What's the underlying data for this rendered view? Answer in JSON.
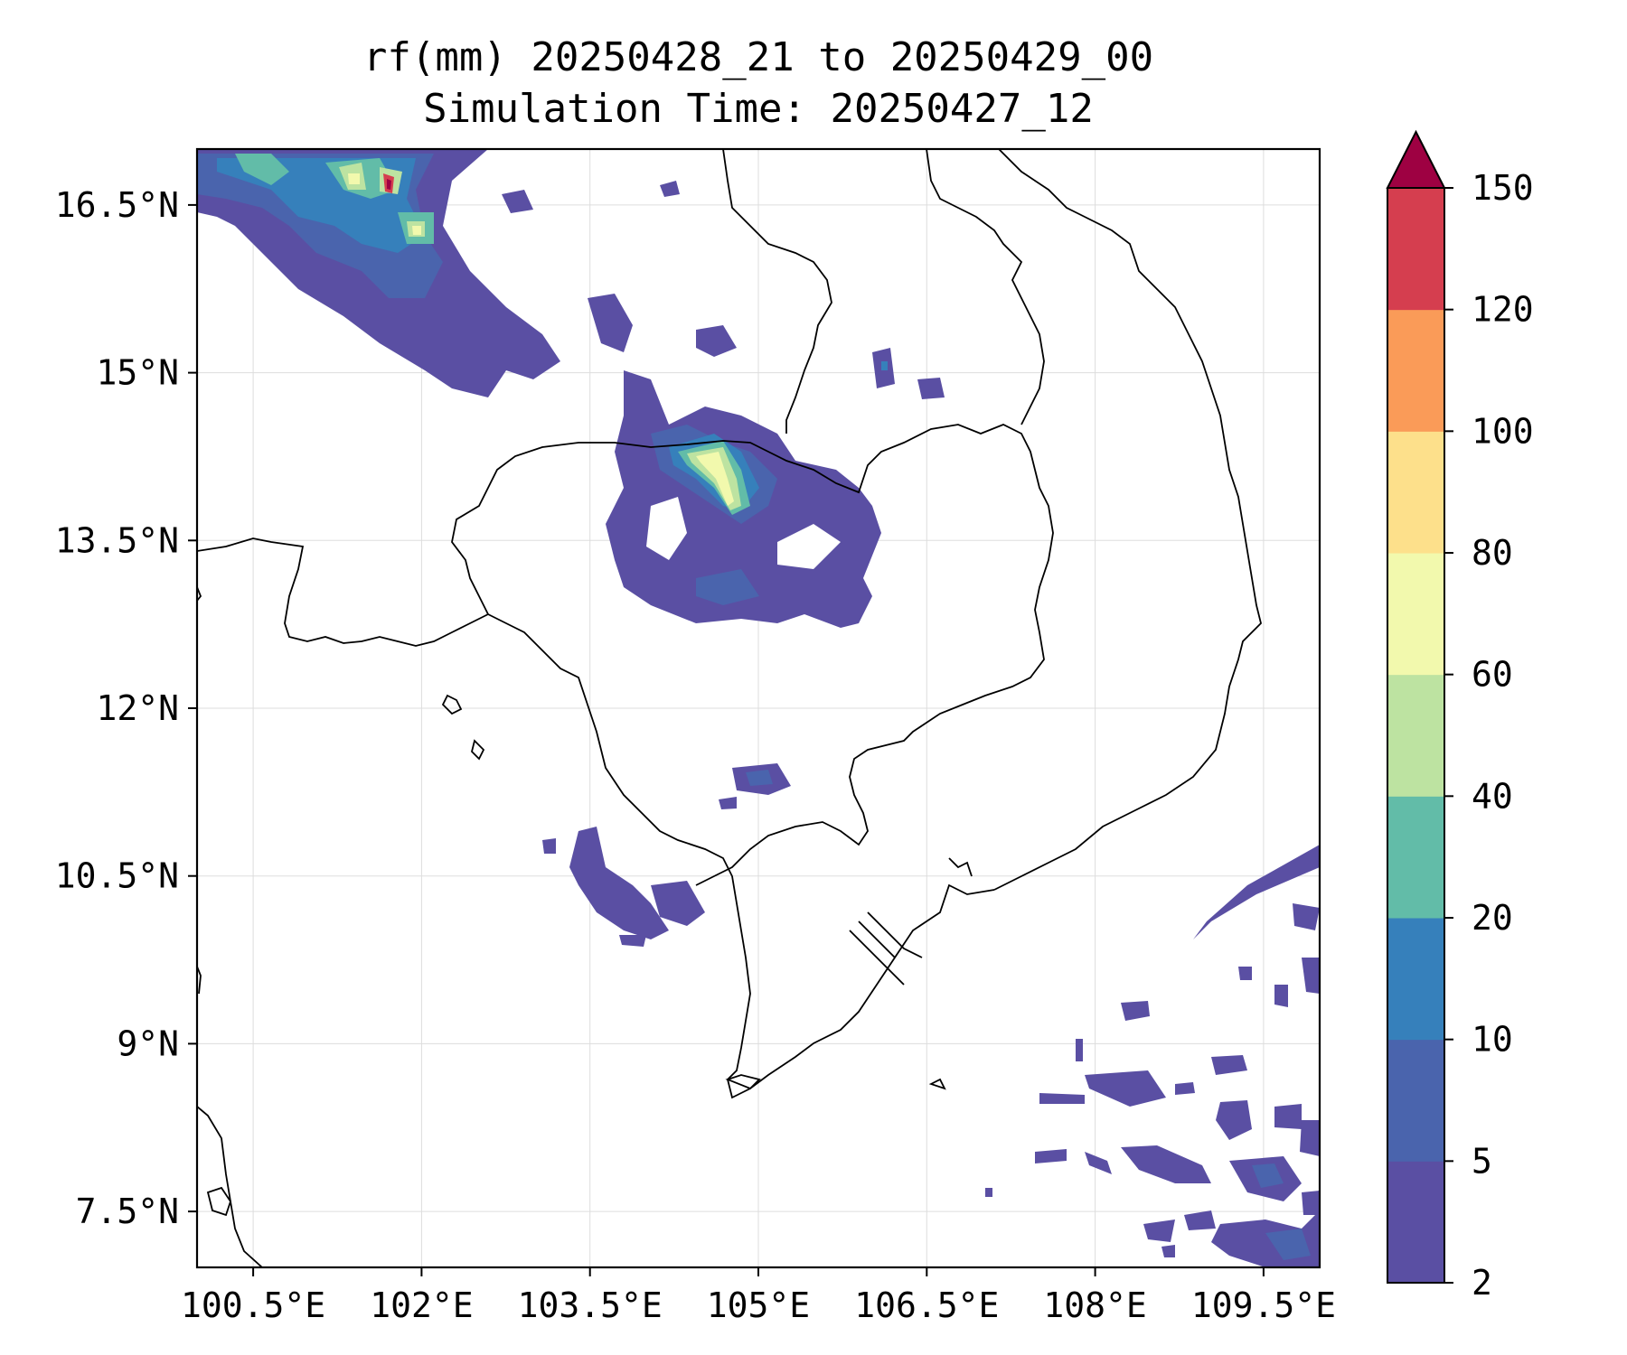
{
  "title": {
    "line1": "rf(mm) 20250428_21 to 20250429_00",
    "line2": "Simulation Time: 20250427_12"
  },
  "map": {
    "lon_range": [
      100.0,
      110.0
    ],
    "lat_range": [
      7.0,
      17.0
    ],
    "grid": true,
    "lon_ticks": [
      {
        "value": 100.5,
        "label": "100.5°E"
      },
      {
        "value": 102.0,
        "label": "102°E"
      },
      {
        "value": 103.5,
        "label": "103.5°E"
      },
      {
        "value": 105.0,
        "label": "105°E"
      },
      {
        "value": 106.5,
        "label": "106.5°E"
      },
      {
        "value": 108.0,
        "label": "108°E"
      },
      {
        "value": 109.5,
        "label": "109.5°E"
      }
    ],
    "lat_ticks": [
      {
        "value": 16.5,
        "label": "16.5°N"
      },
      {
        "value": 15.0,
        "label": "15°N"
      },
      {
        "value": 13.5,
        "label": "13.5°N"
      },
      {
        "value": 12.0,
        "label": "12°N"
      },
      {
        "value": 10.5,
        "label": "10.5°N"
      },
      {
        "value": 9.0,
        "label": "9°N"
      },
      {
        "value": 7.5,
        "label": "7.5°N"
      }
    ]
  },
  "colorbar": {
    "levels": [
      {
        "label": "2",
        "value": 2,
        "color": "#5a4fa3"
      },
      {
        "label": "5",
        "value": 5,
        "color": "#4a64ad"
      },
      {
        "label": "10",
        "value": 10,
        "color": "#3680bb"
      },
      {
        "label": "20",
        "value": 20,
        "color": "#62bca8"
      },
      {
        "label": "40",
        "value": 40,
        "color": "#bde3a1"
      },
      {
        "label": "60",
        "value": 60,
        "color": "#f2f9ad"
      },
      {
        "label": "80",
        "value": 80,
        "color": "#fde08b"
      },
      {
        "label": "100",
        "value": 100,
        "color": "#fa9b58"
      },
      {
        "label": "120",
        "value": 120,
        "color": "#d53e4f"
      },
      {
        "label": "150",
        "value": 150,
        "color": "#9e0142"
      }
    ],
    "extend": "max"
  }
}
